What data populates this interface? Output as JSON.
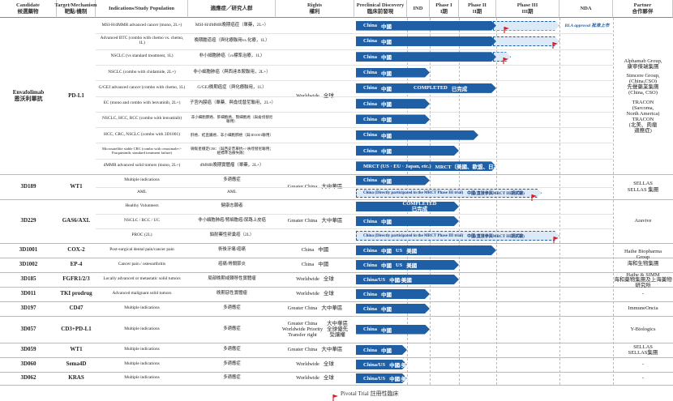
{
  "headers": [
    {
      "lines": [
        "Candidate",
        "候選藥物"
      ]
    },
    {
      "lines": [
        "Target/Mechanism",
        "靶點/機制"
      ]
    },
    {
      "lines": [
        "Indications/Study Population"
      ]
    },
    {
      "lines": [
        "適應症／研究人群"
      ]
    },
    {
      "lines": [
        "Rights",
        "權利"
      ]
    },
    {
      "lines": [
        "Preclinical Discovery",
        "臨床前發現"
      ]
    },
    {
      "lines": [
        "IND"
      ]
    },
    {
      "lines": [
        "Phase I",
        "I期"
      ]
    },
    {
      "lines": [
        "Phase II",
        "II期"
      ]
    },
    {
      "lines": [
        "Phase III",
        "III期"
      ]
    },
    {
      "lines": [
        "NDA"
      ]
    },
    {
      "lines": [
        "Partner",
        "合作夥伴"
      ]
    }
  ],
  "drugs": [
    {
      "candidate": [
        "Envafolimab",
        "恩沃利單抗"
      ],
      "target": "PD-L1",
      "rights": {
        "en": [
          "Worldwide"
        ],
        "zh": [
          "全球"
        ]
      },
      "partner": [
        "Alphamab Group,",
        "康寧傑瑞集團",
        "",
        "Simcere Group,",
        "(China,CSO)",
        "先聲藥業集團",
        "(China, CSO)",
        "",
        "TRACON",
        "(Sarcoma,",
        "North America)",
        "TRACON",
        "(北美、肉瘤",
        "適應症)"
      ],
      "indications": [
        {
          "en": "MSI-H/dMMR advanced cancer (mono, 2L+)",
          "zh": "MSI-H/dMMR晚期癌症（單藥，2L+）",
          "bar": [
            "China",
            "中國"
          ],
          "nda": "BLA approval 批准上市"
        },
        {
          "en": "Advanced BTC (combo with chemo vs. chemo, 1L)",
          "zh": "晚期膽道癌（與化療聯用vs.化療，1L）",
          "bar": [
            "China",
            "中國"
          ]
        },
        {
          "en": "NSCLC (vs standard treatment, 1L)",
          "zh": "非小細胞肺癌（vs標準治療，1L）",
          "bar": [
            "China",
            "中國"
          ]
        },
        {
          "en": "NSCLC (combo with chidamide, 2L+)",
          "zh": "非小細胞肺癌（與西達本胺聯用，2L+）",
          "bar": [
            "China",
            "中國"
          ]
        },
        {
          "en": "G/GEJ advanced cancer (combo with chemo, 1L)",
          "zh": "G/GEJ晚期癌症（與化療聯用，1L）",
          "bar": [
            "China",
            "中國",
            "COMPLETED",
            "已完成"
          ]
        },
        {
          "en": "EC (mono and combo with lenvatinib, 2L+)",
          "zh": "子宮內膜癌（單藥、與侖伐替尼聯用，2L+）",
          "bar": [
            "China",
            "中國"
          ]
        },
        {
          "en": "NSCLC, HCC, RCC (combo with lenvatinib)",
          "zh": "非小細胞肺癌、肝細胞癌、腎細胞癌（與侖伐替尼聯用）",
          "bar": [
            "China",
            "中國"
          ]
        },
        {
          "en": "HCC, CRC, NSCLC (combo with 3D1001)",
          "zh": "肝癌、結直腸癌、非小細胞肺癌（與3D1001聯用）",
          "bar": [
            "China",
            "中國"
          ]
        },
        {
          "en": "Microsatellite stable CRC (combo with cetuximab+/- Fruquintinib; standard treatment failure)",
          "zh": "微衛星穩定CRC（與西妥昔單抗+/-呋喹替尼聯用；經標準治療失敗）",
          "bar": [
            "China",
            "中國"
          ]
        },
        {
          "en": "dMMR advanced solid tumors (mono, 2L+)",
          "zh": "dMMR晚期實體瘤（單藥，2L+）",
          "bar": [
            "MRCT (US · EU · Japan, etc.)",
            "MRCT（美國、歐盟、日本等）"
          ]
        }
      ]
    },
    {
      "candidate": [
        "3D189"
      ],
      "target": "WT1",
      "rights": {
        "en": [
          "Greater China"
        ],
        "zh": [
          "大中華區"
        ]
      },
      "partner": [
        "SELLAS",
        "SELLAS 集團"
      ],
      "indications": [
        {
          "en": "Multiple indications",
          "zh": "多適應症",
          "bar": [
            "China",
            "中國"
          ]
        },
        {
          "en": "AML",
          "zh": "AML",
          "bar": [
            "China (Directly participated in the MRCT Phase III trial)",
            "中國(直接參與MRCT III期試驗)"
          ]
        }
      ]
    },
    {
      "candidate": [
        "3D229"
      ],
      "target": "GAS6/AXL",
      "rights": {
        "en": [
          "Greater China"
        ],
        "zh": [
          "大中華區"
        ]
      },
      "partner": [
        "Aravive"
      ],
      "indications": [
        {
          "en": "Healthy Volunteers",
          "zh": "健康志願者",
          "bar": [
            "COMPLETED",
            "已完成"
          ]
        },
        {
          "en": "NSCLC / RCC / UC",
          "zh": "非小細胞肺癌/腎細胞癌/尿路上皮癌",
          "bar": [
            "China",
            "中國"
          ]
        },
        {
          "en": "PROC (2L)",
          "zh": "鉑耐藥性卵巢癌（2L）",
          "bar": [
            "China (Directly participated in the MRCT Phase III trial)",
            "中國(直接參與MRCT III期試驗)"
          ]
        }
      ]
    },
    {
      "candidate": [
        "3D1001"
      ],
      "target": "COX-2",
      "rights": {
        "en": [
          "China"
        ],
        "zh": [
          "中國"
        ]
      },
      "partner": [
        "Haihe Biopharma",
        "Group",
        "海和生物集團"
      ],
      "indications": [
        {
          "en": "Post-surgical dental pain/cancer pain",
          "zh": "術後牙痛/癌痛",
          "bar": [
            "China",
            "中國",
            "US",
            "美國"
          ]
        }
      ]
    },
    {
      "candidate": [
        "3D1002"
      ],
      "target": "EP-4",
      "rights": {
        "en": [
          "China"
        ],
        "zh": [
          "中國"
        ]
      },
      "indications": [
        {
          "en": "Cancer pain / osteoarthritis",
          "zh": "癌痛/骨關節炎",
          "bar": [
            "China",
            "中國",
            "US",
            "美國"
          ]
        }
      ]
    },
    {
      "candidate": [
        "3D185"
      ],
      "target": "FGFR1/2/3",
      "rights": {
        "en": [
          "Worldwide"
        ],
        "zh": [
          "全球"
        ]
      },
      "partner": [
        "Haihe & SIMM",
        "海和藥物集團及上海藥物研究所"
      ],
      "indications": [
        {
          "en": "Locally advanced or metastatic solid tumors",
          "zh": "局部晚期或轉移性實體瘤",
          "bar": [
            "China/US",
            "中國/美國"
          ]
        }
      ]
    },
    {
      "candidate": [
        "3D011"
      ],
      "target": "TKI prodrug",
      "rights": {
        "en": [
          "Worldwide"
        ],
        "zh": [
          "全球"
        ]
      },
      "partner": [
        "-"
      ],
      "indications": [
        {
          "en": "Advanced malignant solid tumors",
          "zh": "晚期惡性實體瘤",
          "bar": [
            "China",
            "中國"
          ]
        }
      ]
    },
    {
      "candidate": [
        "3D197"
      ],
      "target": "CD47",
      "rights": {
        "en": [
          "Greater China"
        ],
        "zh": [
          "大中華區"
        ]
      },
      "partner": [
        "ImmuneOncia"
      ],
      "indications": [
        {
          "en": "Multiple indications",
          "zh": "多適應症",
          "bar": [
            "China",
            "中國"
          ]
        }
      ]
    },
    {
      "candidate": [
        "3D057"
      ],
      "target": "CD3+PD-L1",
      "rights": {
        "en": [
          "Greater China",
          "Worldwide Priority",
          "Transfer right"
        ],
        "zh": [
          "大中華區",
          "全球優先",
          "受讓權"
        ]
      },
      "partner": [
        "Y-Biologics"
      ],
      "indications": [
        {
          "en": "Multiple indications",
          "zh": "多適應症",
          "bar": [
            "China",
            "中國"
          ]
        }
      ]
    },
    {
      "candidate": [
        "3D059"
      ],
      "target": "WT1",
      "rights": {
        "en": [
          "Greater China"
        ],
        "zh": [
          "大中華區"
        ]
      },
      "partner": [
        "SELLAS",
        "SELLAS集團"
      ],
      "indications": [
        {
          "en": "Multiple indications",
          "zh": "多適應症",
          "bar": [
            "China",
            "中國"
          ]
        }
      ]
    },
    {
      "candidate": [
        "3D060"
      ],
      "target": "Sema4D",
      "rights": {
        "en": [
          "Worldwide"
        ],
        "zh": [
          "全球"
        ]
      },
      "partner": [
        "-"
      ],
      "indications": [
        {
          "en": "Multiple indications",
          "zh": "多適應症",
          "bar": [
            "China/US",
            "中國/美國"
          ]
        }
      ]
    },
    {
      "candidate": [
        "3D062"
      ],
      "target": "KRAS",
      "rights": {
        "en": [
          "Worldwide"
        ],
        "zh": [
          "全球"
        ]
      },
      "partner": [
        "-"
      ],
      "indications": [
        {
          "en": "Multiple indications",
          "zh": "多適應症",
          "bar": [
            "China/US",
            "中國/美國"
          ]
        }
      ]
    }
  ],
  "legend": "Pivotal Trial 註冊性臨床"
}
